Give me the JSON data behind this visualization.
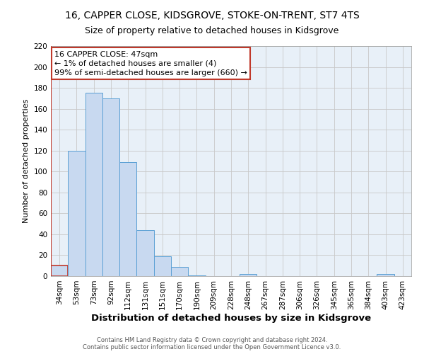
{
  "title": "16, CAPPER CLOSE, KIDSGROVE, STOKE-ON-TRENT, ST7 4TS",
  "subtitle": "Size of property relative to detached houses in Kidsgrove",
  "xlabel": "Distribution of detached houses by size in Kidsgrove",
  "ylabel": "Number of detached properties",
  "bin_labels": [
    "34sqm",
    "53sqm",
    "73sqm",
    "92sqm",
    "112sqm",
    "131sqm",
    "151sqm",
    "170sqm",
    "190sqm",
    "209sqm",
    "228sqm",
    "248sqm",
    "267sqm",
    "287sqm",
    "306sqm",
    "326sqm",
    "345sqm",
    "365sqm",
    "384sqm",
    "403sqm",
    "423sqm"
  ],
  "bar_values": [
    10,
    120,
    175,
    170,
    109,
    44,
    19,
    9,
    1,
    0,
    0,
    2,
    0,
    0,
    0,
    0,
    0,
    0,
    0,
    2,
    0
  ],
  "bar_color": "#c8d9f0",
  "bar_edge_color": "#5a9fd4",
  "highlight_color": "#c0392b",
  "ylim": [
    0,
    220
  ],
  "yticks": [
    0,
    20,
    40,
    60,
    80,
    100,
    120,
    140,
    160,
    180,
    200,
    220
  ],
  "annotation_title": "16 CAPPER CLOSE: 47sqm",
  "annotation_line1": "← 1% of detached houses are smaller (4)",
  "annotation_line2": "99% of semi-detached houses are larger (660) →",
  "annotation_box_color": "#ffffff",
  "annotation_box_edge": "#c0392b",
  "footer_line1": "Contains HM Land Registry data © Crown copyright and database right 2024.",
  "footer_line2": "Contains public sector information licensed under the Open Government Licence v3.0.",
  "background_color": "#ffffff",
  "grid_color": "#c8c8c8",
  "title_fontsize": 10,
  "subtitle_fontsize": 9,
  "xlabel_fontsize": 9.5,
  "ylabel_fontsize": 8,
  "tick_fontsize": 7.5,
  "annotation_fontsize": 8,
  "footer_fontsize": 6
}
